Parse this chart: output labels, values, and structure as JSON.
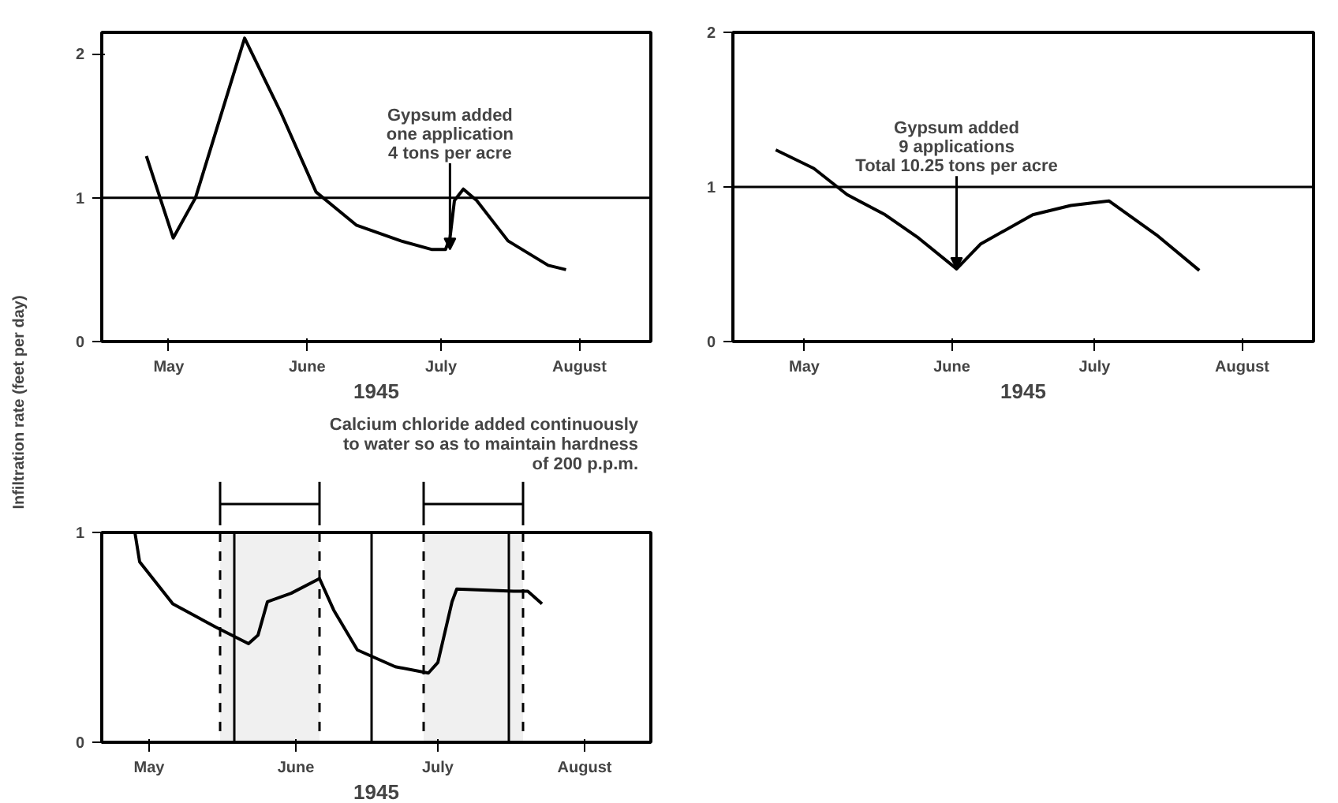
{
  "chart_data": [
    {
      "type": "line",
      "ylabel": "Infiltration rate (feet per day)",
      "xlabel": "1945",
      "color": "#000000",
      "grid": false,
      "x": [
        "1945-05-10",
        "1945-05-16",
        "1945-05-21",
        "1945-06-01",
        "1945-06-09",
        "1945-06-17",
        "1945-06-26",
        "1945-07-06",
        "1945-07-13",
        "1945-07-16",
        "1945-07-17",
        "1945-07-18",
        "1945-07-20",
        "1945-07-23",
        "1945-07-30",
        "1945-08-08",
        "1945-08-12"
      ],
      "values": [
        1.29,
        0.72,
        1.0,
        2.11,
        1.6,
        1.04,
        0.81,
        0.7,
        0.64,
        0.64,
        0.72,
        0.98,
        1.06,
        0.98,
        0.7,
        0.53,
        0.5
      ],
      "xlim": [
        "1945-04-30",
        "1945-08-31"
      ],
      "xticks": [
        {
          "value": "1945-05-15",
          "label": "May"
        },
        {
          "value": "1945-06-15",
          "label": "June"
        },
        {
          "value": "1945-07-15",
          "label": "July"
        },
        {
          "value": "1945-08-15",
          "label": "August"
        }
      ],
      "ylim": [
        0,
        2.15
      ],
      "yticks": [
        0,
        1,
        2
      ],
      "ref_lines": [
        {
          "axis": "y",
          "value": 1
        }
      ],
      "annotations": [
        {
          "text": "Gypsum added\none application\n4 tons per acre",
          "x": "1945-07-17",
          "y": 0.64
        }
      ]
    },
    {
      "type": "line",
      "xlabel": "1945",
      "color": "#000000",
      "grid": false,
      "x": [
        "1945-05-09",
        "1945-05-17",
        "1945-05-24",
        "1945-06-01",
        "1945-06-08",
        "1945-06-16",
        "1945-06-21",
        "1945-07-02",
        "1945-07-10",
        "1945-07-18",
        "1945-07-28",
        "1945-08-06"
      ],
      "values": [
        1.24,
        1.12,
        0.95,
        0.82,
        0.67,
        0.47,
        0.63,
        0.82,
        0.88,
        0.91,
        0.69,
        0.46
      ],
      "xlim": [
        "1945-04-30",
        "1945-08-30"
      ],
      "xticks": [
        {
          "value": "1945-05-15",
          "label": "May"
        },
        {
          "value": "1945-06-15",
          "label": "June"
        },
        {
          "value": "1945-07-15",
          "label": "July"
        },
        {
          "value": "1945-08-15",
          "label": "August"
        }
      ],
      "ylim": [
        0,
        2
      ],
      "yticks": [
        0,
        1,
        2
      ],
      "ref_lines": [
        {
          "axis": "y",
          "value": 1
        }
      ],
      "annotations": [
        {
          "text": "Gypsum added\n9 applications\nTotal 10.25 tons per acre",
          "x": "1945-06-16",
          "y": 0.47
        }
      ]
    },
    {
      "type": "line",
      "xlabel": "1945",
      "color": "#000000",
      "grid": false,
      "x": [
        "1945-05-12",
        "1945-05-13",
        "1945-05-20",
        "1945-05-29",
        "1945-06-05",
        "1945-06-07",
        "1945-06-09",
        "1945-06-14",
        "1945-06-20",
        "1945-06-23",
        "1945-06-28",
        "1945-07-06",
        "1945-07-13",
        "1945-07-15",
        "1945-07-18",
        "1945-07-19",
        "1945-07-31",
        "1945-08-03",
        "1945-08-06"
      ],
      "values": [
        1.0,
        0.86,
        0.66,
        0.55,
        0.47,
        0.51,
        0.67,
        0.71,
        0.78,
        0.63,
        0.44,
        0.36,
        0.33,
        0.38,
        0.67,
        0.73,
        0.72,
        0.72,
        0.66
      ],
      "xlim": [
        "1945-05-05",
        "1945-08-29"
      ],
      "xticks": [
        {
          "value": "1945-05-15",
          "label": "May"
        },
        {
          "value": "1945-06-15",
          "label": "June"
        },
        {
          "value": "1945-07-15",
          "label": "July"
        },
        {
          "value": "1945-08-15",
          "label": "August"
        }
      ],
      "ylim": [
        0,
        1
      ],
      "yticks": [
        0,
        1
      ],
      "ref_lines": [
        {
          "axis": "x",
          "value": "1945-06-02",
          "line_style": "solid"
        },
        {
          "axis": "x",
          "value": "1945-07-01",
          "line_style": "solid"
        },
        {
          "axis": "x",
          "value": "1945-07-30",
          "line_style": "solid"
        },
        {
          "axis": "x",
          "value": "1945-05-30",
          "line_style": "dashed"
        },
        {
          "axis": "x",
          "value": "1945-06-20",
          "line_style": "dashed"
        },
        {
          "axis": "x",
          "value": "1945-07-12",
          "line_style": "dashed"
        },
        {
          "axis": "x",
          "value": "1945-08-02",
          "line_style": "dashed"
        }
      ],
      "bands": [
        {
          "axis": "x",
          "from": "1945-05-30",
          "to": "1945-06-20"
        },
        {
          "axis": "x",
          "from": "1945-07-12",
          "to": "1945-08-02"
        }
      ],
      "annotations": [
        "Calcium chloride added continuously\nto water so as to maintain hardness\nof 200 p.p.m."
      ]
    }
  ]
}
